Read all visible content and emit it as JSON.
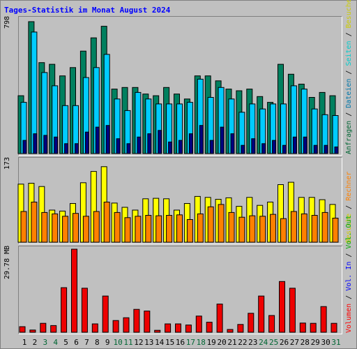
{
  "title": "Tages-Statistik im Monat August 2024",
  "y_labels": {
    "top": "798",
    "middle": "173",
    "bottom": "29.78 MB"
  },
  "right_labels": {
    "top": [
      {
        "text": "Anfragen",
        "color": "#006633"
      },
      {
        "text": " / ",
        "color": "#000000"
      },
      {
        "text": "Dateien",
        "color": "#0077aa"
      },
      {
        "text": " / ",
        "color": "#000000"
      },
      {
        "text": "Seiten",
        "color": "#00cccc"
      },
      {
        "text": " / ",
        "color": "#000000"
      },
      {
        "text": "Besuche",
        "color": "#cccc00"
      }
    ],
    "middle": [
      {
        "text": "Besuche",
        "color": "#cccc00"
      },
      {
        "text": " / ",
        "color": "#000000"
      },
      {
        "text": "Rechner",
        "color": "#ff8000"
      }
    ],
    "bottom": [
      {
        "text": "Volumen",
        "color": "#ff0000"
      },
      {
        "text": " / ",
        "color": "#000000"
      },
      {
        "text": "Vol. In",
        "color": "#0000ff"
      },
      {
        "text": " / ",
        "color": "#000000"
      },
      {
        "text": "Vol. Out",
        "color": "#00aa00"
      }
    ]
  },
  "chart_data": [
    {
      "type": "bar",
      "title": "Tages-Statistik im Monat August 2024",
      "ylim": [
        0,
        798
      ],
      "categories": [
        "1",
        "2",
        "3",
        "4",
        "5",
        "6",
        "7",
        "8",
        "9",
        "10",
        "11",
        "12",
        "13",
        "14",
        "15",
        "16",
        "17",
        "18",
        "19",
        "20",
        "21",
        "22",
        "23",
        "24",
        "25",
        "26",
        "27",
        "28",
        "29",
        "30",
        "31"
      ],
      "series": [
        {
          "name": "Anfragen",
          "color": "#00805f",
          "values": [
            350,
            798,
            550,
            540,
            470,
            520,
            620,
            700,
            770,
            390,
            400,
            400,
            360,
            350,
            400,
            360,
            330,
            470,
            470,
            440,
            390,
            380,
            390,
            345,
            310,
            540,
            480,
            420,
            340,
            370,
            350
          ]
        },
        {
          "name": "Dateien",
          "color": "#00ccff",
          "values": [
            310,
            735,
            490,
            410,
            290,
            290,
            460,
            520,
            600,
            330,
            260,
            370,
            330,
            300,
            300,
            300,
            310,
            450,
            340,
            400,
            330,
            250,
            300,
            270,
            300,
            300,
            410,
            390,
            270,
            235,
            230
          ]
        },
        {
          "name": "Seiten",
          "color": "#000080",
          "values": [
            80,
            120,
            110,
            100,
            60,
            60,
            130,
            160,
            170,
            90,
            60,
            100,
            120,
            140,
            70,
            80,
            120,
            170,
            80,
            160,
            120,
            50,
            90,
            60,
            80,
            50,
            100,
            100,
            50,
            50,
            40
          ]
        }
      ]
    },
    {
      "type": "bar",
      "ylim": [
        0,
        173
      ],
      "categories": [
        "1",
        "2",
        "3",
        "4",
        "5",
        "6",
        "7",
        "8",
        "9",
        "10",
        "11",
        "12",
        "13",
        "14",
        "15",
        "16",
        "17",
        "18",
        "19",
        "20",
        "21",
        "22",
        "23",
        "24",
        "25",
        "26",
        "27",
        "28",
        "29",
        "30",
        "31"
      ],
      "series": [
        {
          "name": "Besuche",
          "color": "#ffff00",
          "values": [
            123,
            125,
            118,
            68,
            66,
            82,
            126,
            150,
            160,
            83,
            74,
            68,
            92,
            93,
            92,
            68,
            82,
            97,
            95,
            91,
            94,
            76,
            95,
            78,
            85,
            122,
            127,
            95,
            95,
            90,
            80
          ]
        },
        {
          "name": "Rechner",
          "color": "#ff8000",
          "values": [
            65,
            85,
            63,
            60,
            55,
            61,
            55,
            65,
            85,
            63,
            52,
            55,
            57,
            56,
            57,
            58,
            48,
            60,
            75,
            80,
            63,
            53,
            56,
            55,
            59,
            50,
            65,
            60,
            57,
            63,
            51
          ]
        }
      ]
    },
    {
      "type": "bar",
      "ylim": [
        0,
        29.78
      ],
      "yunit": "MB",
      "categories": [
        "1",
        "2",
        "3",
        "4",
        "5",
        "6",
        "7",
        "8",
        "9",
        "10",
        "11",
        "12",
        "13",
        "14",
        "15",
        "16",
        "17",
        "18",
        "19",
        "20",
        "21",
        "22",
        "23",
        "24",
        "25",
        "26",
        "27",
        "28",
        "29",
        "30",
        "31"
      ],
      "series": [
        {
          "name": "Volumen",
          "color": "#ee0000",
          "values": [
            2.0,
            0.8,
            3.2,
            2.4,
            16.0,
            29.78,
            15.8,
            3.0,
            13.0,
            4.2,
            5.2,
            8.2,
            7.6,
            0.7,
            3.0,
            3.0,
            2.6,
            5.8,
            3.6,
            10.1,
            1.0,
            2.8,
            6.8,
            13.0,
            6.0,
            18.2,
            15.8,
            3.3,
            3.2,
            9.2,
            3.2
          ]
        }
      ]
    }
  ],
  "x_label_colors": [
    "#000000",
    "#000000",
    "#006633",
    "#006633",
    "#000000",
    "#000000",
    "#000000",
    "#000000",
    "#000000",
    "#006633",
    "#006633",
    "#000000",
    "#000000",
    "#000000",
    "#000000",
    "#000000",
    "#006633",
    "#006633",
    "#000000",
    "#000000",
    "#000000",
    "#000000",
    "#000000",
    "#006633",
    "#006633",
    "#000000",
    "#000000",
    "#000000",
    "#000000",
    "#000000",
    "#006633"
  ]
}
